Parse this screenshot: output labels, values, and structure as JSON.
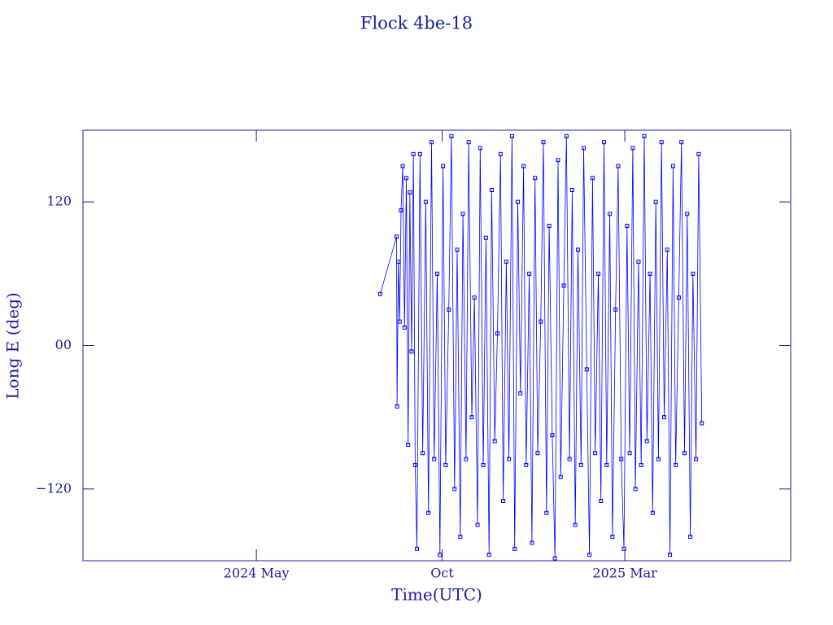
{
  "chart_data": {
    "type": "line",
    "title": "Flock 4be-18",
    "x_label": "Time(UTC)",
    "y_label": "Long E (deg)",
    "xlim": [
      2023.937,
      2025.537
    ],
    "ylim": [
      -180,
      180
    ],
    "xticks": [
      {
        "value": 2024.329,
        "label": "2024 May"
      },
      {
        "value": 2024.749,
        "label": "Oct"
      },
      {
        "value": 2025.162,
        "label": "2025 Mar"
      }
    ],
    "yticks": [
      {
        "value": -120,
        "label": "−120"
      },
      {
        "value": 0,
        "label": "00"
      },
      120
    ],
    "markers": true,
    "series": [
      {
        "color": "#0000ff",
        "x": [
          2024.609,
          2024.646,
          2024.647,
          2024.65,
          2024.653,
          2024.656,
          2024.66,
          2024.664,
          2024.668,
          2024.672,
          2024.676,
          2024.68,
          2024.684,
          2024.688,
          2024.692,
          2024.699,
          2024.705,
          2024.712,
          2024.718,
          2024.725,
          2024.731,
          2024.738,
          2024.744,
          2024.751,
          2024.757,
          2024.764,
          2024.77,
          2024.777,
          2024.783,
          2024.79,
          2024.796,
          2024.803,
          2024.809,
          2024.816,
          2024.822,
          2024.829,
          2024.835,
          2024.842,
          2024.848,
          2024.855,
          2024.861,
          2024.868,
          2024.874,
          2024.881,
          2024.887,
          2024.894,
          2024.9,
          2024.907,
          2024.913,
          2024.92,
          2024.926,
          2024.933,
          2024.939,
          2024.946,
          2024.952,
          2024.959,
          2024.965,
          2024.972,
          2024.978,
          2024.985,
          2024.991,
          2024.998,
          2025.004,
          2025.011,
          2025.017,
          2025.024,
          2025.03,
          2025.037,
          2025.043,
          2025.05,
          2025.056,
          2025.063,
          2025.069,
          2025.076,
          2025.082,
          2025.089,
          2025.095,
          2025.102,
          2025.108,
          2025.115,
          2025.121,
          2025.128,
          2025.134,
          2025.141,
          2025.147,
          2025.154,
          2025.16,
          2025.167,
          2025.173,
          2025.18,
          2025.186,
          2025.193,
          2025.199,
          2025.206,
          2025.212,
          2025.219,
          2025.225,
          2025.232,
          2025.238,
          2025.245,
          2025.251,
          2025.258,
          2025.264,
          2025.271,
          2025.277,
          2025.284,
          2025.29,
          2025.297,
          2025.303,
          2025.31,
          2025.316,
          2025.323,
          2025.329,
          2025.336
        ],
        "values": [
          43,
          91,
          -51,
          70,
          20,
          113,
          150,
          15,
          140,
          -83,
          128,
          -5,
          160,
          -100,
          -170,
          160,
          -90,
          120,
          -140,
          170,
          -95,
          60,
          -175,
          150,
          -100,
          30,
          175,
          -120,
          80,
          -160,
          110,
          -95,
          170,
          -60,
          40,
          -150,
          165,
          -100,
          90,
          -175,
          130,
          -80,
          10,
          160,
          -130,
          70,
          -95,
          175,
          -170,
          120,
          -40,
          150,
          -100,
          60,
          -165,
          140,
          -90,
          20,
          170,
          -140,
          100,
          -75,
          -178,
          155,
          -110,
          50,
          175,
          -95,
          130,
          -150,
          80,
          -100,
          165,
          -20,
          -175,
          140,
          -90,
          60,
          -130,
          170,
          -100,
          110,
          -160,
          30,
          150,
          -95,
          -170,
          100,
          -90,
          165,
          -120,
          70,
          -100,
          175,
          -80,
          60,
          -140,
          120,
          -95,
          170,
          -60,
          80,
          -175,
          150,
          -100,
          40,
          170,
          -90,
          110,
          -160,
          60,
          -95,
          160,
          -65
        ]
      }
    ]
  }
}
